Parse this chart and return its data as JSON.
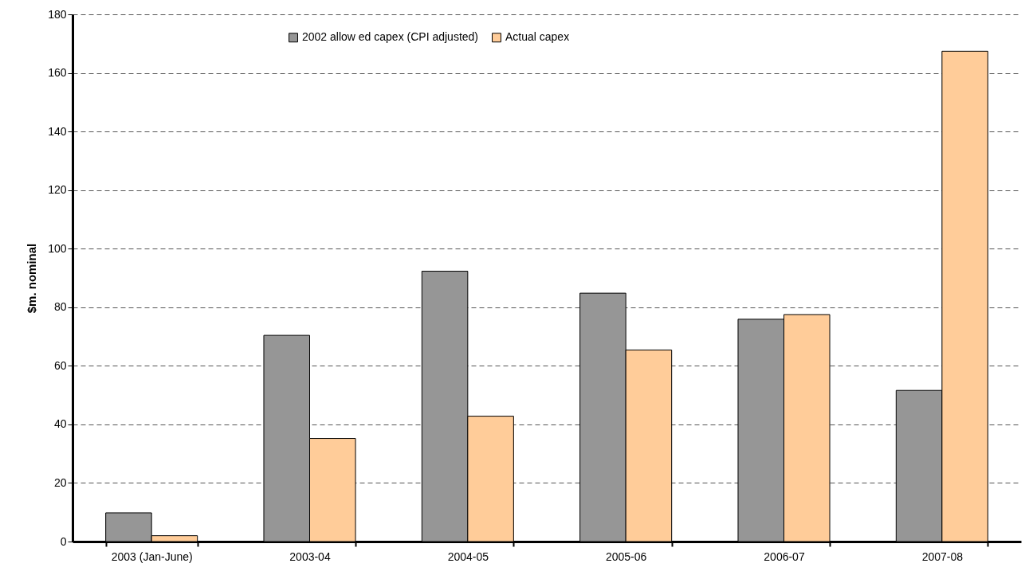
{
  "chart_data": {
    "type": "bar",
    "ylabel": "$m. nominal",
    "categories": [
      "2003 (Jan-June)",
      "2003-04",
      "2004-05",
      "2005-06",
      "2006-07",
      "2007-08"
    ],
    "series": [
      {
        "name": "2002 allow ed capex (CPI adjusted)",
        "color": "#969696",
        "values": [
          9.8,
          70.4,
          92.3,
          84.8,
          75.9,
          51.6
        ]
      },
      {
        "name": "Actual capex",
        "color": "#ffcc99",
        "values": [
          2.0,
          35.2,
          42.8,
          65.4,
          77.5,
          167.4
        ]
      }
    ],
    "ylim": [
      0,
      180
    ],
    "yticks": [
      0,
      20,
      40,
      60,
      80,
      100,
      120,
      140,
      160,
      180
    ],
    "grid": "y",
    "legend": "top"
  }
}
